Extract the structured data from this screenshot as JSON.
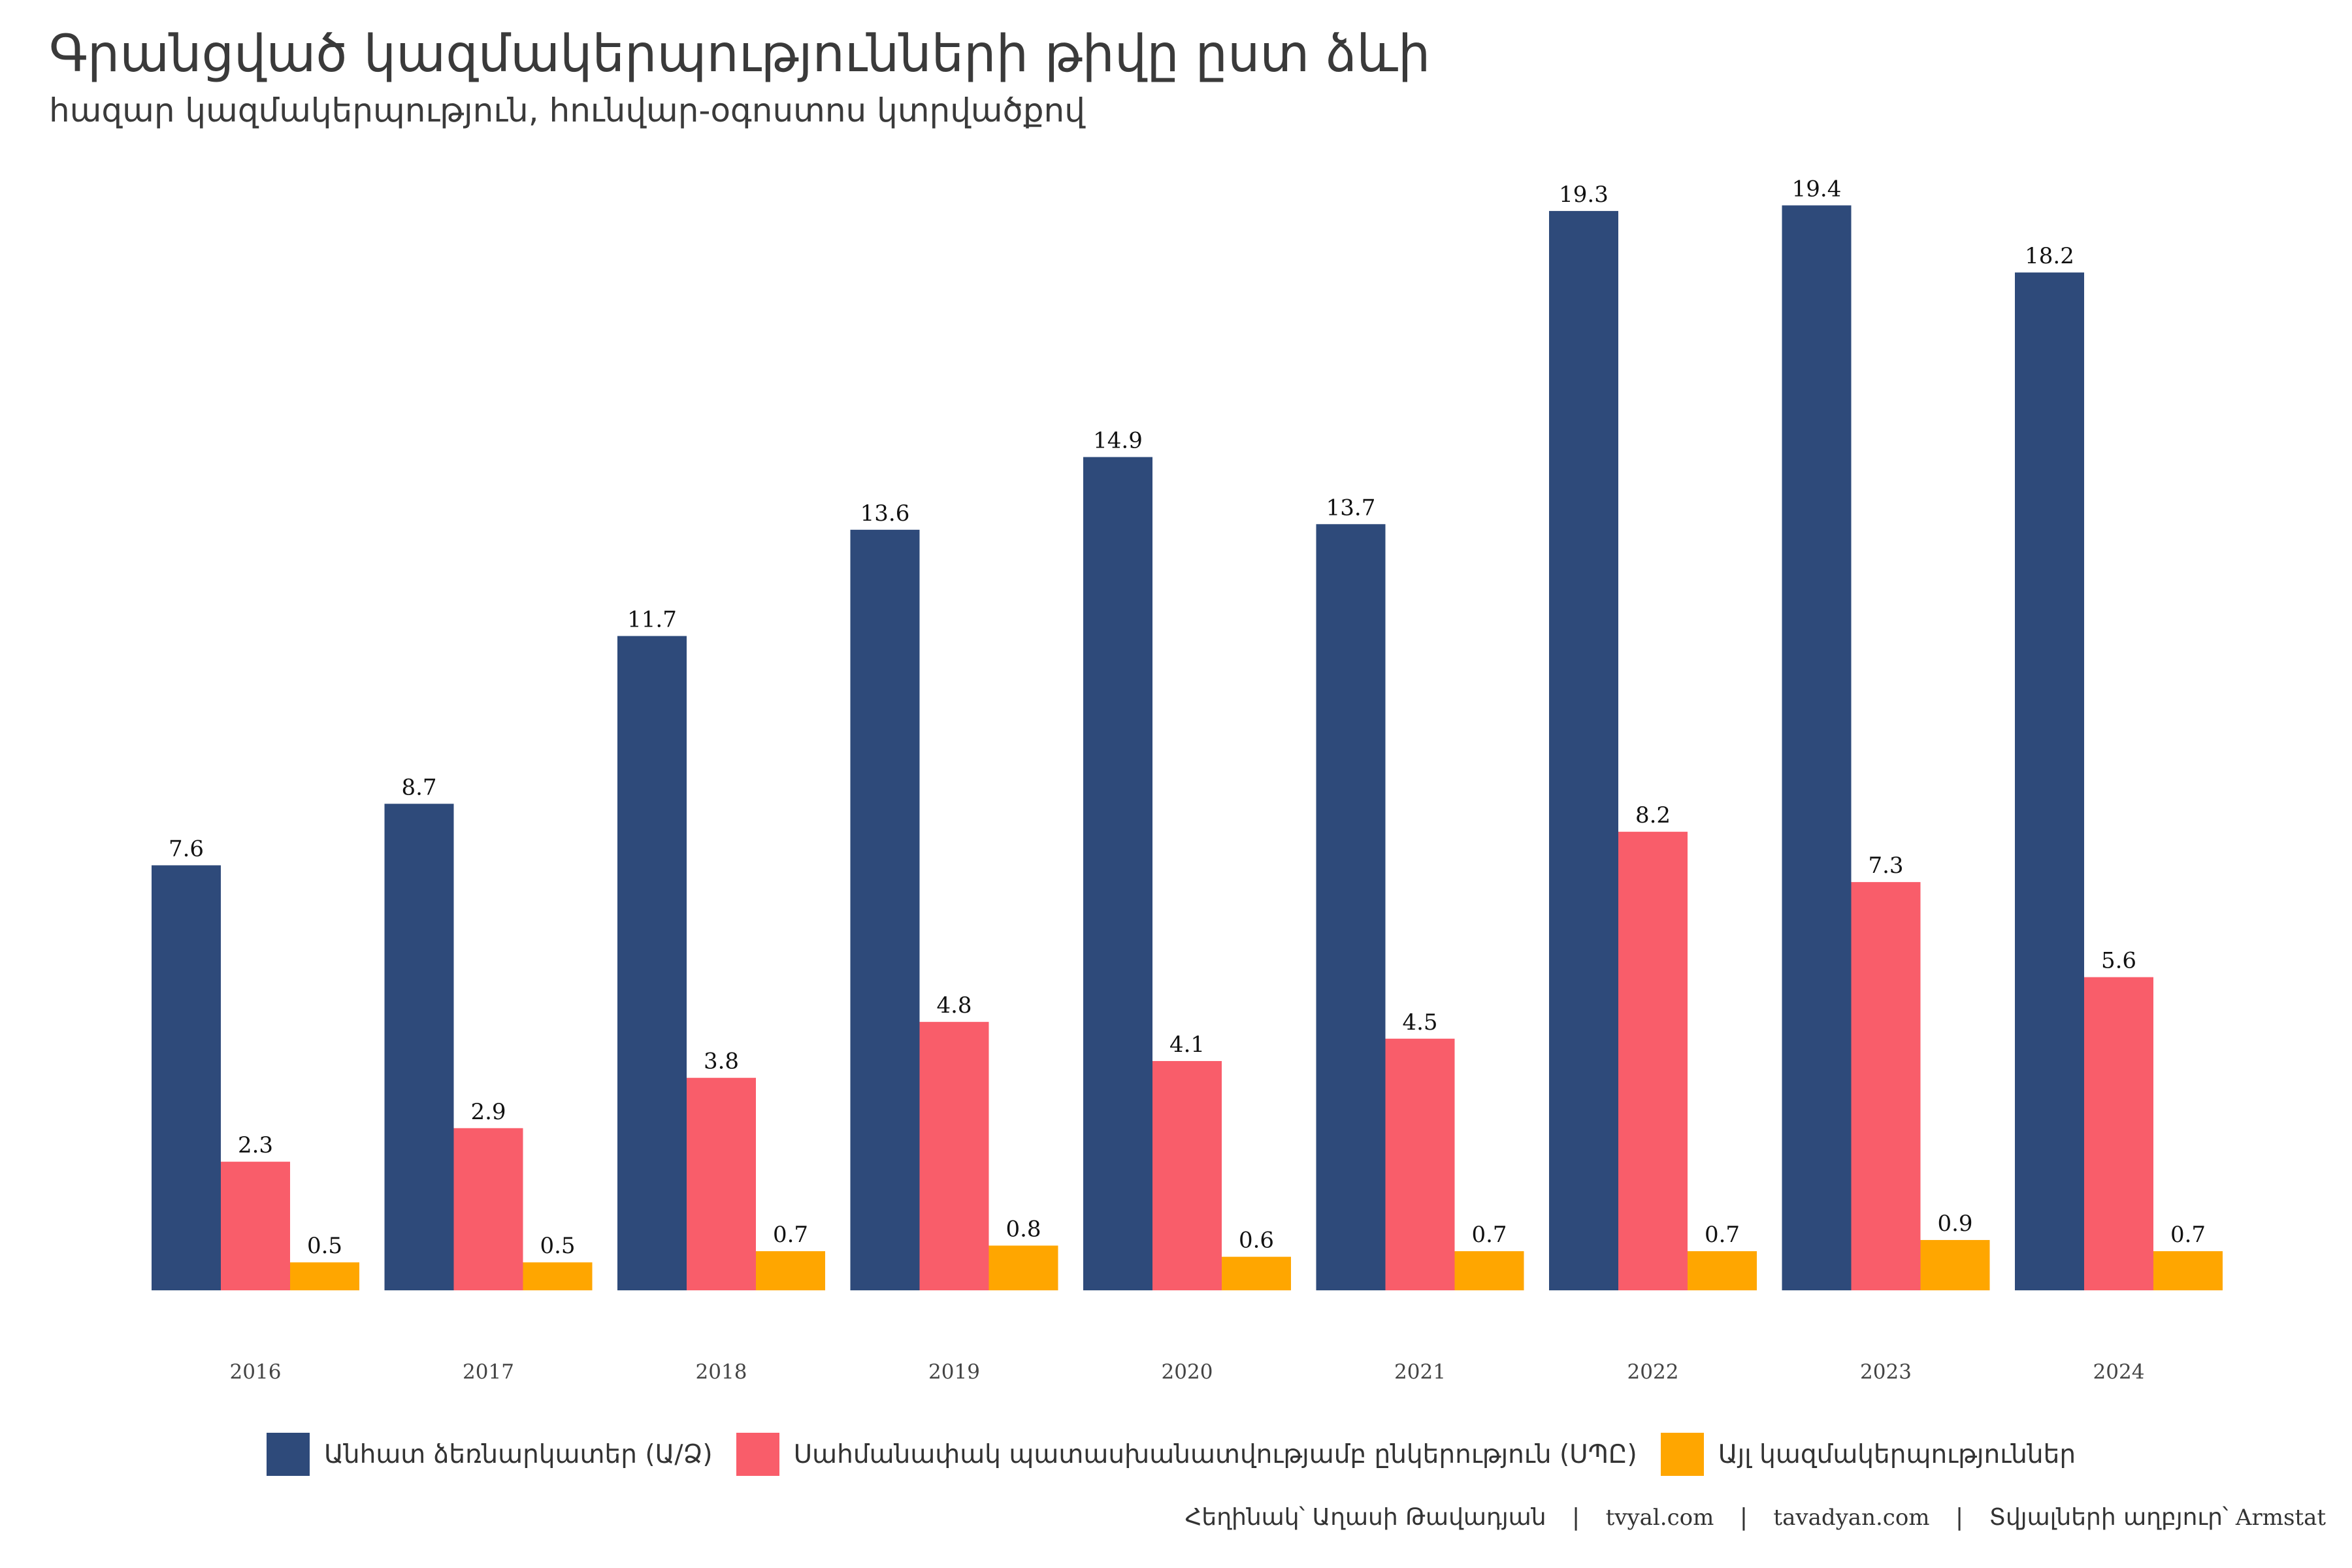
{
  "title": "Գրանցված կազմակերպությունների թիվը ըստ ձևի",
  "subtitle": "հազար կազմակերպություն, հունվար-օգոստոս կտրվածքով",
  "colors": {
    "series1": "#2e4a7a",
    "series2": "#f95d6a",
    "series3": "#ffa600"
  },
  "chart_data": {
    "type": "bar",
    "title": "Գրանցված կազմակերպությունների թիվը ըստ ձևի",
    "xlabel": "",
    "ylabel": "",
    "ylim": [
      0,
      20
    ],
    "grid": false,
    "legend_position": "bottom",
    "categories": [
      "2016",
      "2017",
      "2018",
      "2019",
      "2020",
      "2021",
      "2022",
      "2023",
      "2024"
    ],
    "series": [
      {
        "name": "Անհատ ձեռնարկատեր (Ա/Ձ)",
        "values": [
          7.6,
          8.7,
          11.7,
          13.6,
          14.9,
          13.7,
          19.3,
          19.4,
          18.2
        ]
      },
      {
        "name": "Սահմանափակ պատասխանատվությամբ ընկերություն (ՍՊԸ)",
        "values": [
          2.3,
          2.9,
          3.8,
          4.8,
          4.1,
          4.5,
          8.2,
          7.3,
          5.6
        ]
      },
      {
        "name": "Այլ կազմակերպություններ",
        "values": [
          0.5,
          0.5,
          0.7,
          0.8,
          0.6,
          0.7,
          0.7,
          0.9,
          0.7
        ]
      }
    ]
  },
  "footer": {
    "author": "Հեղինակ՝ Աղասի Թավադյան",
    "site1": "tvyal.com",
    "site2": "tavadyan.com",
    "source_label": "Տվյալների աղբյուր՝",
    "source_name": "Armstat",
    "separator": "|"
  }
}
